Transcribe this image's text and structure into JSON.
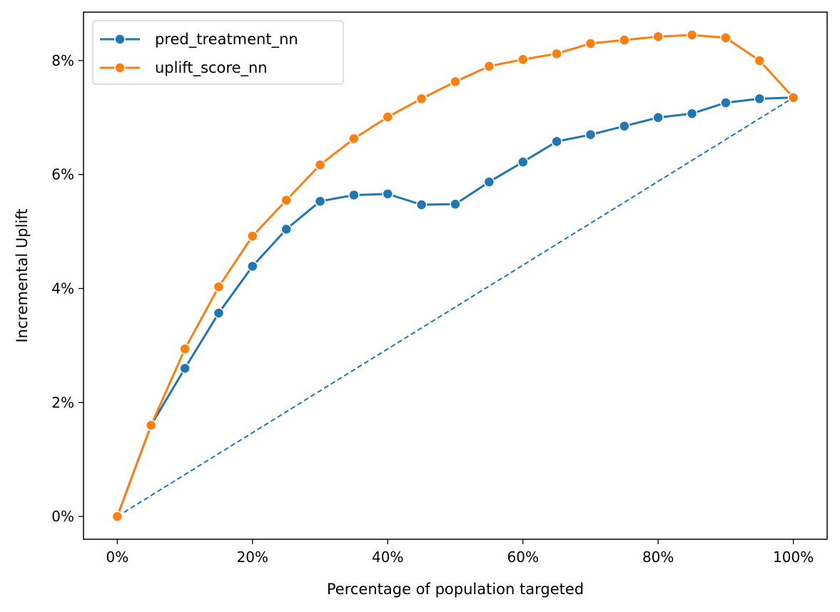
{
  "chart_data": {
    "type": "line",
    "title": "",
    "xlabel": "Percentage of population targeted",
    "ylabel": "Incremental Uplift",
    "xlim": [
      -0.05,
      1.05
    ],
    "ylim": [
      -0.004,
      0.0885
    ],
    "x_ticks": [
      0,
      0.2,
      0.4,
      0.6,
      0.8,
      1.0
    ],
    "x_tick_labels": [
      "0%",
      "20%",
      "40%",
      "60%",
      "80%",
      "100%"
    ],
    "y_ticks": [
      0,
      0.02,
      0.04,
      0.06,
      0.08
    ],
    "y_tick_labels": [
      "0%",
      "2%",
      "4%",
      "6%",
      "8%"
    ],
    "grid": false,
    "legend_position": "top-left",
    "x": [
      0,
      0.05,
      0.1,
      0.15,
      0.2,
      0.25,
      0.3,
      0.35,
      0.4,
      0.45,
      0.5,
      0.55,
      0.6,
      0.65,
      0.7,
      0.75,
      0.8,
      0.85,
      0.9,
      0.95,
      1.0
    ],
    "series": [
      {
        "name": "pred_treatment_nn",
        "color": "#1f77b4",
        "marker": "circle",
        "values": [
          0.0,
          0.016,
          0.026,
          0.0357,
          0.0439,
          0.0504,
          0.0553,
          0.0564,
          0.0566,
          0.0547,
          0.0548,
          0.0587,
          0.0622,
          0.0658,
          0.067,
          0.0685,
          0.07,
          0.0707,
          0.0726,
          0.0733,
          0.0735
        ]
      },
      {
        "name": "uplift_score_nn",
        "color": "#ff7f0e",
        "marker": "circle",
        "values": [
          0.0,
          0.016,
          0.0294,
          0.0403,
          0.0492,
          0.0555,
          0.0617,
          0.0663,
          0.0701,
          0.0733,
          0.0763,
          0.079,
          0.0802,
          0.0812,
          0.083,
          0.0836,
          0.0842,
          0.0845,
          0.084,
          0.08,
          0.0735
        ]
      }
    ],
    "reference_line": {
      "style": "dashed",
      "color": "#1f77b4",
      "from": [
        0,
        0
      ],
      "to": [
        1.0,
        0.0735
      ]
    }
  }
}
